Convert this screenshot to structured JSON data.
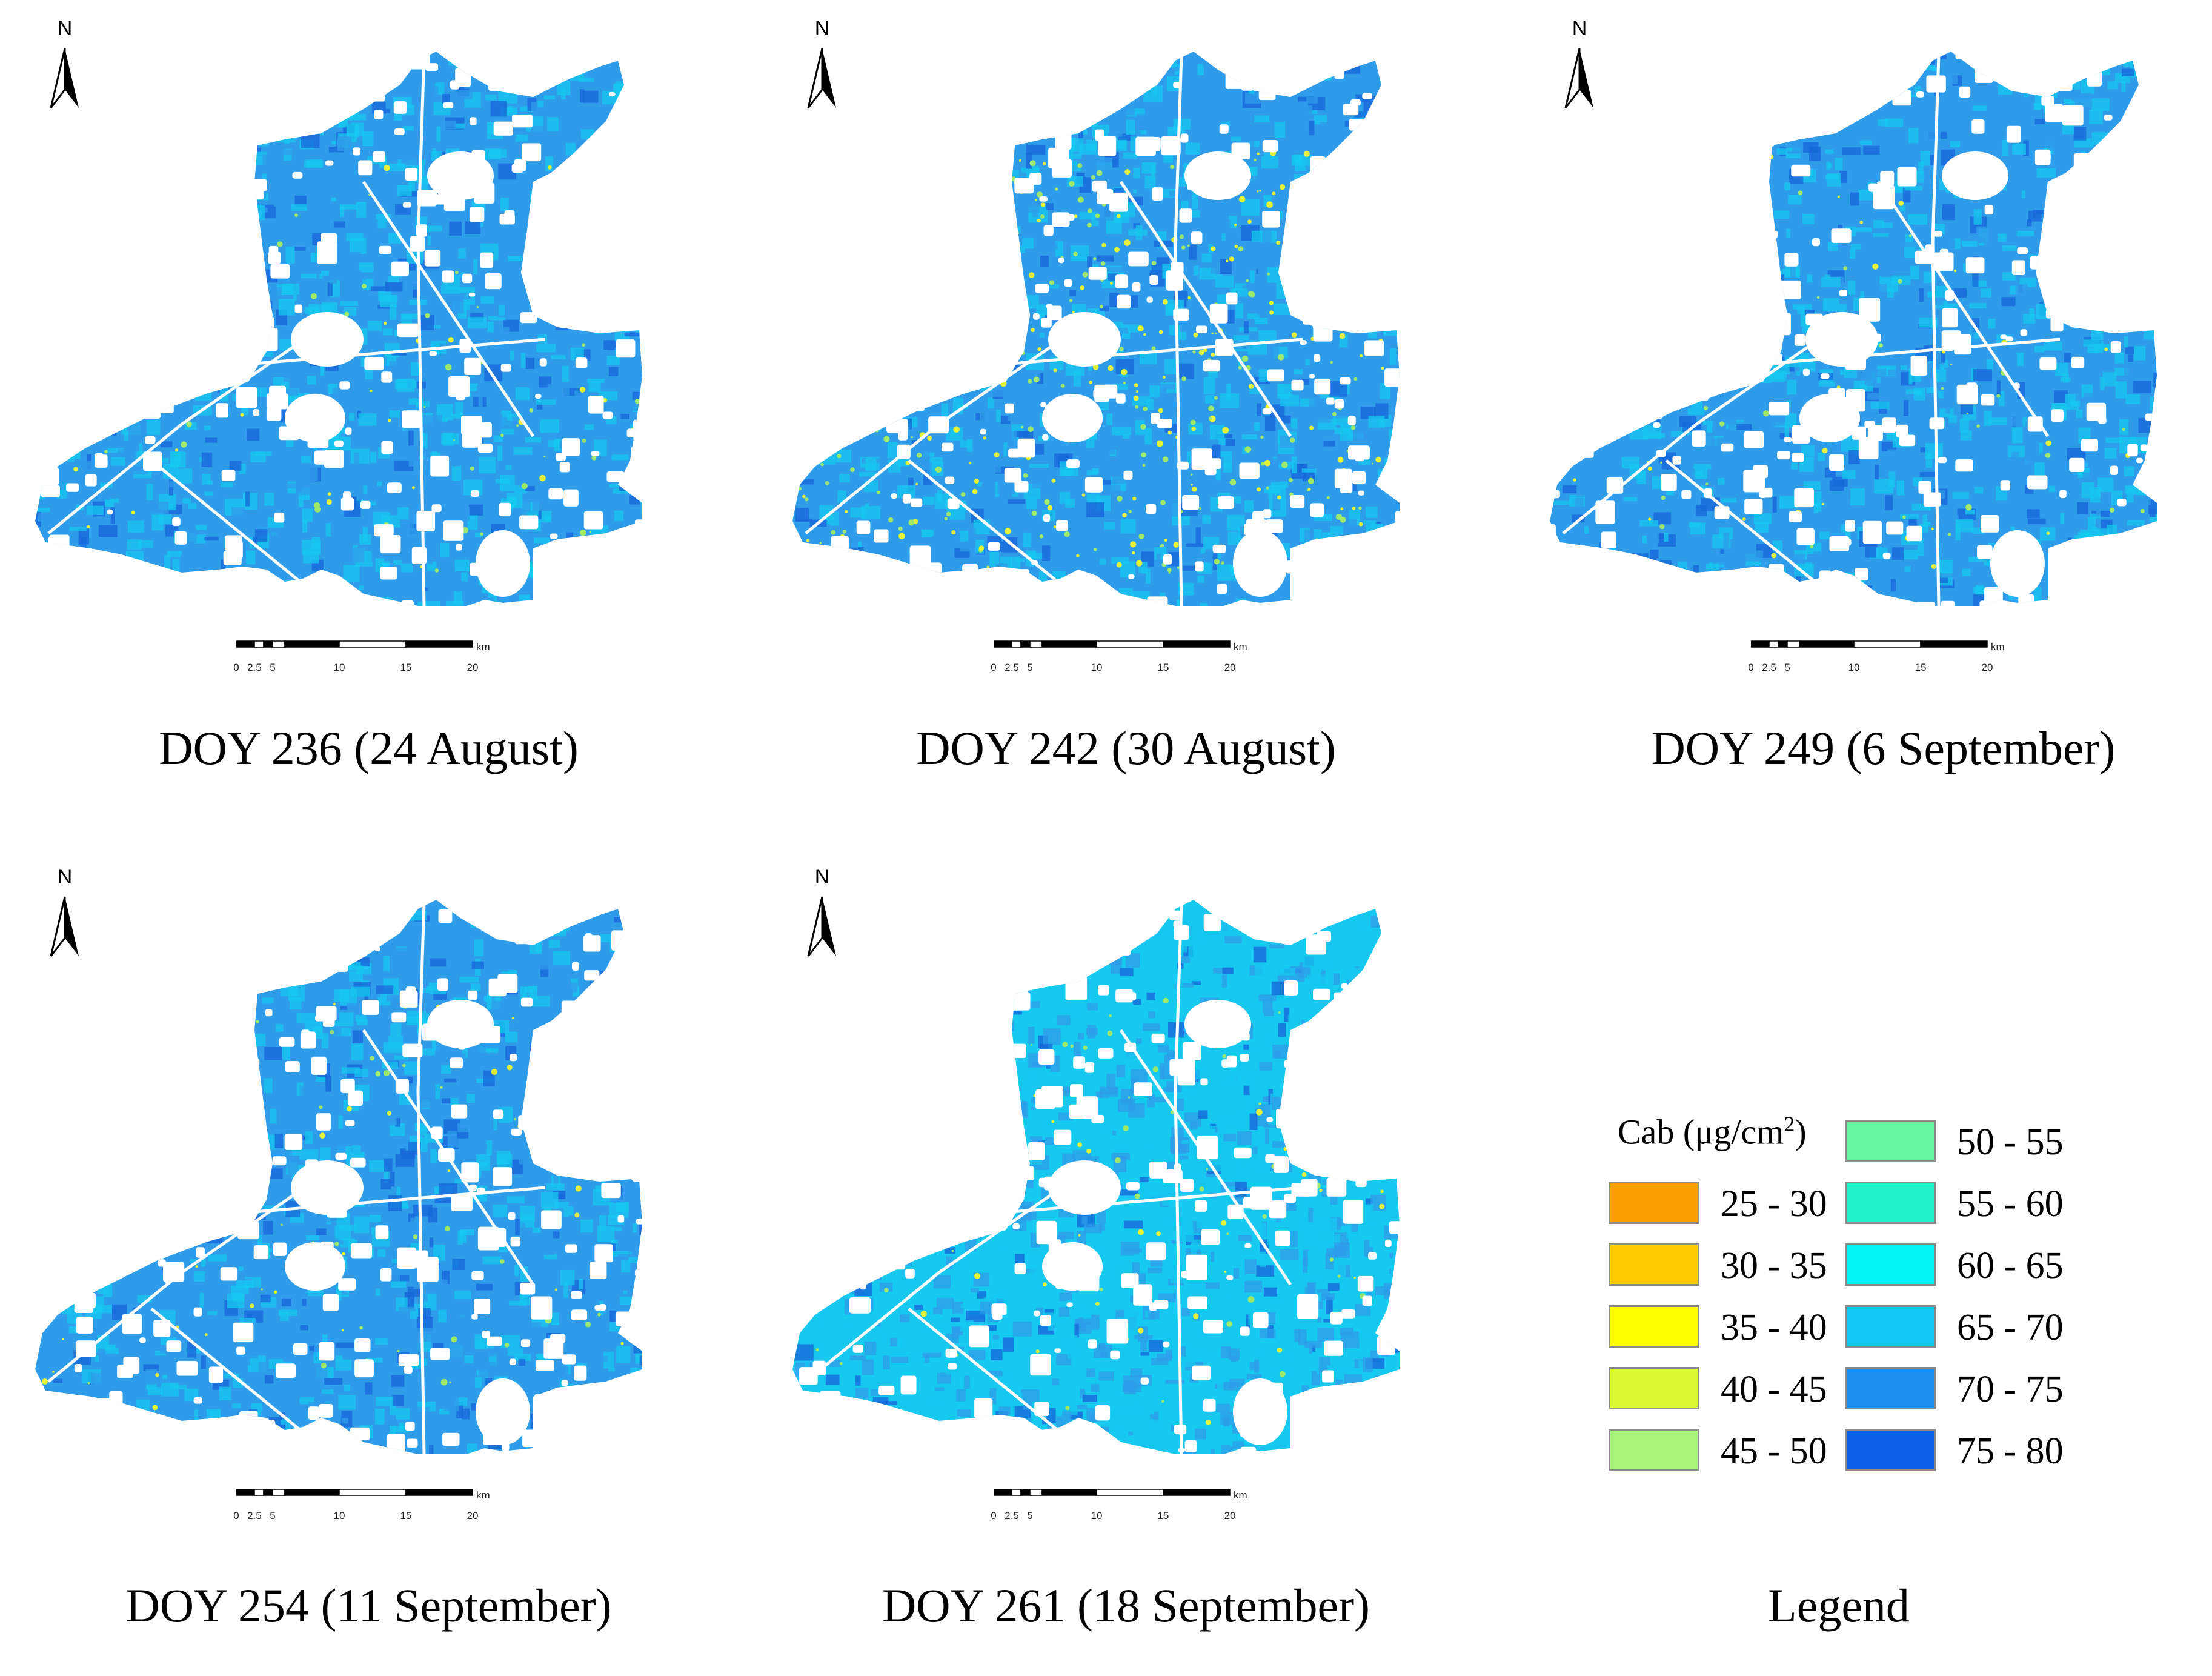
{
  "figure": {
    "north_letter": "N",
    "scale": {
      "ticks": [
        "0",
        "2.5",
        "5",
        "10",
        "15",
        "20"
      ],
      "unit": "km"
    },
    "palette": {
      "base": "#2f9cea",
      "light": "#17c8ef",
      "dark": "#1766d8",
      "green": "#9ee86a",
      "yellow": "#e5f23a"
    }
  },
  "panels": [
    {
      "caption": "DOY 236 (24 August)",
      "tone": "blue"
    },
    {
      "caption": "DOY 242 (30 August)",
      "tone": "green"
    },
    {
      "caption": "DOY 249 (6 September)",
      "tone": "blue"
    },
    {
      "caption": "DOY 254 (11 September)",
      "tone": "blue"
    },
    {
      "caption": "DOY 261 (18 September)",
      "tone": "light"
    }
  ],
  "legend": {
    "title": "Cab (μg/cm",
    "title_sup": "2",
    "title_end": ")",
    "caption": "Legend",
    "left_items": [
      {
        "label": "25 - 30",
        "color": "#f7a000"
      },
      {
        "label": "30 - 35",
        "color": "#ffcc00"
      },
      {
        "label": "35 - 40",
        "color": "#ffff00"
      },
      {
        "label": "40 - 45",
        "color": "#dcfa32"
      },
      {
        "label": "45 - 50",
        "color": "#a8f57a"
      }
    ],
    "right_items": [
      {
        "label": "50 - 55",
        "color": "#66f5a2"
      },
      {
        "label": "55 - 60",
        "color": "#22f0c8"
      },
      {
        "label": "60 - 65",
        "color": "#00f5f5"
      },
      {
        "label": "65 - 70",
        "color": "#14c8f5"
      },
      {
        "label": "70 - 75",
        "color": "#1e8ff0"
      },
      {
        "label": "75 - 80",
        "color": "#0c5ee8"
      }
    ]
  }
}
